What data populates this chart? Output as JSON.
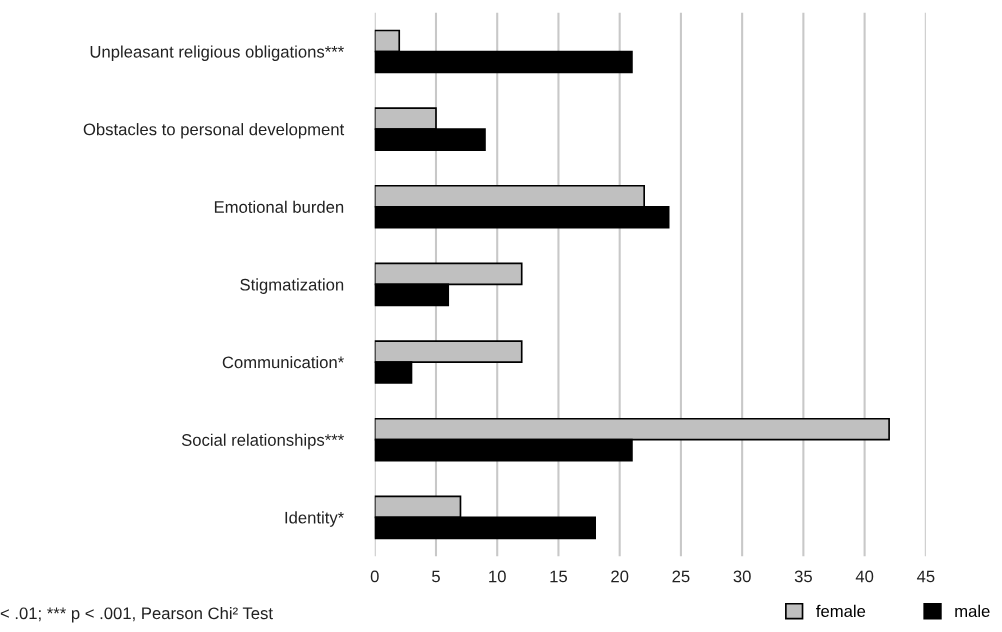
{
  "chart_data": {
    "type": "bar",
    "orientation": "horizontal",
    "categories": [
      "Unpleasant religious obligations***",
      "Obstacles to personal development",
      "Emotional burden",
      "Stigmatization",
      "Communication*",
      "Social relationships***",
      "Identity*"
    ],
    "series": [
      {
        "name": "female",
        "color": "#c0c0c0",
        "values": [
          2,
          5,
          22,
          12,
          12,
          42,
          7
        ]
      },
      {
        "name": "male",
        "color": "#000000",
        "values": [
          21,
          9,
          24,
          6,
          3,
          21,
          18
        ]
      }
    ],
    "xlim": [
      0,
      45
    ],
    "xticks": [
      0,
      5,
      10,
      15,
      20,
      25,
      30,
      35,
      40,
      45
    ],
    "grid": "x",
    "legend": "bottom right",
    "annotations": [
      "< .01; *** p < .001, Pearson Chi² Test"
    ]
  }
}
